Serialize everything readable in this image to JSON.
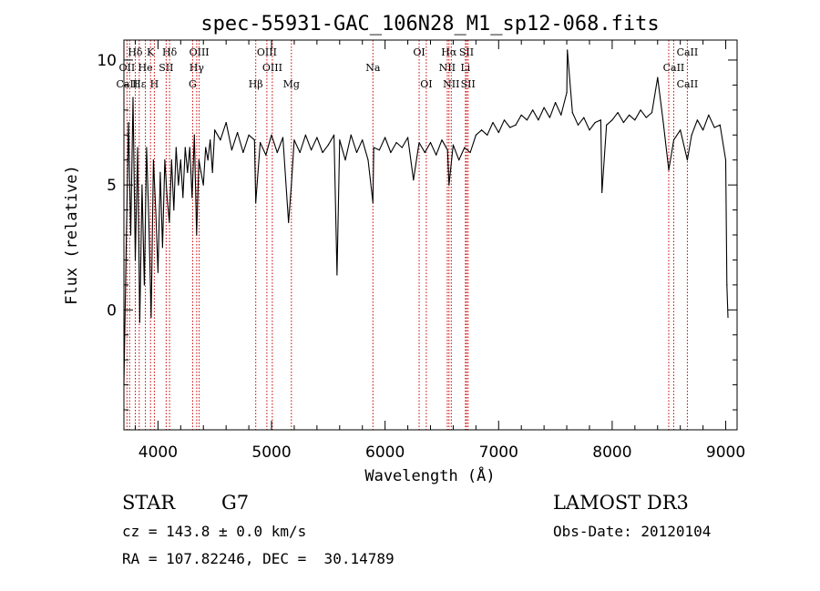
{
  "chart_data": {
    "type": "line",
    "title": "spec-55931-GAC_106N28_M1_sp12-068.fits",
    "xlabel": "Wavelength (Å)",
    "ylabel": "Flux (relative)",
    "xlim": [
      3700,
      9100
    ],
    "ylim": [
      -4.8,
      10.8
    ],
    "xticks": [
      4000,
      5000,
      6000,
      7000,
      8000,
      9000
    ],
    "yticks": [
      0,
      5,
      10
    ],
    "series": [
      {
        "name": "spectrum",
        "x": [
          3700,
          3720,
          3740,
          3760,
          3780,
          3800,
          3820,
          3840,
          3860,
          3880,
          3900,
          3920,
          3940,
          3960,
          3980,
          4000,
          4020,
          4040,
          4060,
          4080,
          4100,
          4120,
          4140,
          4160,
          4180,
          4200,
          4220,
          4240,
          4260,
          4280,
          4300,
          4320,
          4340,
          4360,
          4380,
          4400,
          4420,
          4440,
          4460,
          4480,
          4500,
          4550,
          4600,
          4650,
          4700,
          4750,
          4800,
          4850,
          4861,
          4900,
          4950,
          5000,
          5050,
          5100,
          5150,
          5175,
          5200,
          5250,
          5300,
          5350,
          5400,
          5450,
          5500,
          5550,
          5577,
          5600,
          5650,
          5700,
          5750,
          5800,
          5850,
          5893,
          5900,
          5950,
          6000,
          6050,
          6100,
          6150,
          6200,
          6250,
          6300,
          6350,
          6400,
          6450,
          6500,
          6550,
          6563,
          6600,
          6650,
          6700,
          6750,
          6800,
          6850,
          6900,
          6950,
          7000,
          7050,
          7100,
          7150,
          7200,
          7250,
          7300,
          7350,
          7400,
          7450,
          7500,
          7550,
          7600,
          7605,
          7650,
          7700,
          7750,
          7800,
          7850,
          7900,
          7910,
          7950,
          8000,
          8050,
          8100,
          8150,
          8200,
          8250,
          8300,
          8350,
          8400,
          8450,
          8498,
          8542,
          8600,
          8662,
          8700,
          8750,
          8800,
          8850,
          8900,
          8950,
          9000,
          9010,
          9020
        ],
        "values": [
          -3.0,
          2.5,
          7.5,
          3.0,
          8.5,
          2.0,
          6.5,
          -0.5,
          5.0,
          1.0,
          6.5,
          3.5,
          -0.3,
          6.0,
          4.0,
          1.5,
          5.5,
          2.5,
          6.0,
          4.5,
          3.5,
          6.0,
          4.0,
          6.5,
          5.0,
          6.0,
          4.5,
          6.5,
          5.5,
          6.5,
          4.5,
          7.0,
          3.0,
          6.0,
          5.5,
          5.0,
          6.5,
          6.0,
          6.8,
          5.5,
          7.2,
          6.8,
          7.5,
          6.4,
          7.1,
          6.3,
          7.0,
          6.8,
          4.3,
          6.7,
          6.2,
          7.0,
          6.3,
          6.9,
          3.5,
          5.0,
          6.8,
          6.3,
          7.0,
          6.4,
          6.9,
          6.3,
          6.6,
          7.0,
          1.4,
          6.8,
          6.0,
          7.0,
          6.3,
          6.8,
          6.0,
          4.3,
          6.5,
          6.4,
          6.9,
          6.3,
          6.7,
          6.5,
          6.9,
          5.2,
          6.7,
          6.3,
          6.7,
          6.2,
          6.8,
          6.4,
          5.0,
          6.6,
          6.0,
          6.5,
          6.3,
          7.0,
          7.2,
          7.0,
          7.5,
          7.1,
          7.6,
          7.3,
          7.4,
          7.8,
          7.6,
          8.0,
          7.6,
          8.1,
          7.7,
          8.3,
          7.8,
          8.7,
          10.4,
          7.9,
          7.4,
          7.7,
          7.2,
          7.5,
          7.6,
          4.7,
          7.4,
          7.6,
          7.9,
          7.5,
          7.8,
          7.6,
          8.0,
          7.7,
          7.9,
          9.3,
          7.5,
          5.6,
          6.8,
          7.2,
          6.0,
          7.0,
          7.6,
          7.2,
          7.8,
          7.3,
          7.4,
          6.0,
          1.0,
          -0.3
        ]
      }
    ],
    "annotations": [
      {
        "label": "Hδ",
        "row": 0,
        "wavelength": 3800
      },
      {
        "label": "K",
        "row": 0,
        "wavelength": 3934
      },
      {
        "label": "Hδ",
        "row": 0,
        "wavelength": 4102
      },
      {
        "label": "OIII",
        "row": 0,
        "wavelength": 4363
      },
      {
        "label": "OIII",
        "row": 0,
        "wavelength": 4959
      },
      {
        "label": "OI",
        "row": 0,
        "wavelength": 6300
      },
      {
        "label": "Hα",
        "row": 0,
        "wavelength": 6563
      },
      {
        "label": "SII",
        "row": 0,
        "wavelength": 6717
      },
      {
        "label": "CaII",
        "row": 0,
        "wavelength": 8662
      },
      {
        "label": "OII",
        "row": 1,
        "wavelength": 3727
      },
      {
        "label": "He",
        "row": 1,
        "wavelength": 3889
      },
      {
        "label": "SII",
        "row": 1,
        "wavelength": 4072
      },
      {
        "label": "Hγ",
        "row": 1,
        "wavelength": 4341
      },
      {
        "label": "OIII",
        "row": 1,
        "wavelength": 5007
      },
      {
        "label": "Na",
        "row": 1,
        "wavelength": 5893
      },
      {
        "label": "NII",
        "row": 1,
        "wavelength": 6548
      },
      {
        "label": "Li",
        "row": 1,
        "wavelength": 6708
      },
      {
        "label": "CaII",
        "row": 1,
        "wavelength": 8542
      },
      {
        "label": "CaII",
        "row": 2,
        "wavelength": 3727
      },
      {
        "label": "Hε",
        "row": 2,
        "wavelength": 3835
      },
      {
        "label": "H",
        "row": 2,
        "wavelength": 3968
      },
      {
        "label": "G",
        "row": 2,
        "wavelength": 4305
      },
      {
        "label": "Hβ",
        "row": 2,
        "wavelength": 4861
      },
      {
        "label": "Mg",
        "row": 2,
        "wavelength": 5175
      },
      {
        "label": "OI",
        "row": 2,
        "wavelength": 6363
      },
      {
        "label": "NII",
        "row": 2,
        "wavelength": 6583
      },
      {
        "label": "SII",
        "row": 2,
        "wavelength": 6731
      },
      {
        "label": "CaII",
        "row": 2,
        "wavelength": 8662
      }
    ],
    "line_markers": [
      3727,
      3750,
      3800,
      3835,
      3889,
      3934,
      3968,
      4072,
      4102,
      4305,
      4341,
      4363,
      4861,
      4959,
      5007,
      5175,
      5893,
      6300,
      6363,
      6548,
      6563,
      6583,
      6708,
      6717,
      6731,
      8498,
      8542,
      8662
    ],
    "colors": {
      "spectrum": "#000000",
      "marker": "#cc0000",
      "axes": "#000000"
    }
  },
  "info": {
    "class_label": "STAR",
    "subclass": "G7",
    "survey": "LAMOST DR3",
    "redshift_text": "cz = 143.8 ± 0.0 km/s",
    "obs_date_text": "Obs-Date: 20120104",
    "coords_text": "RA = 107.82246, DEC =  30.14789"
  }
}
